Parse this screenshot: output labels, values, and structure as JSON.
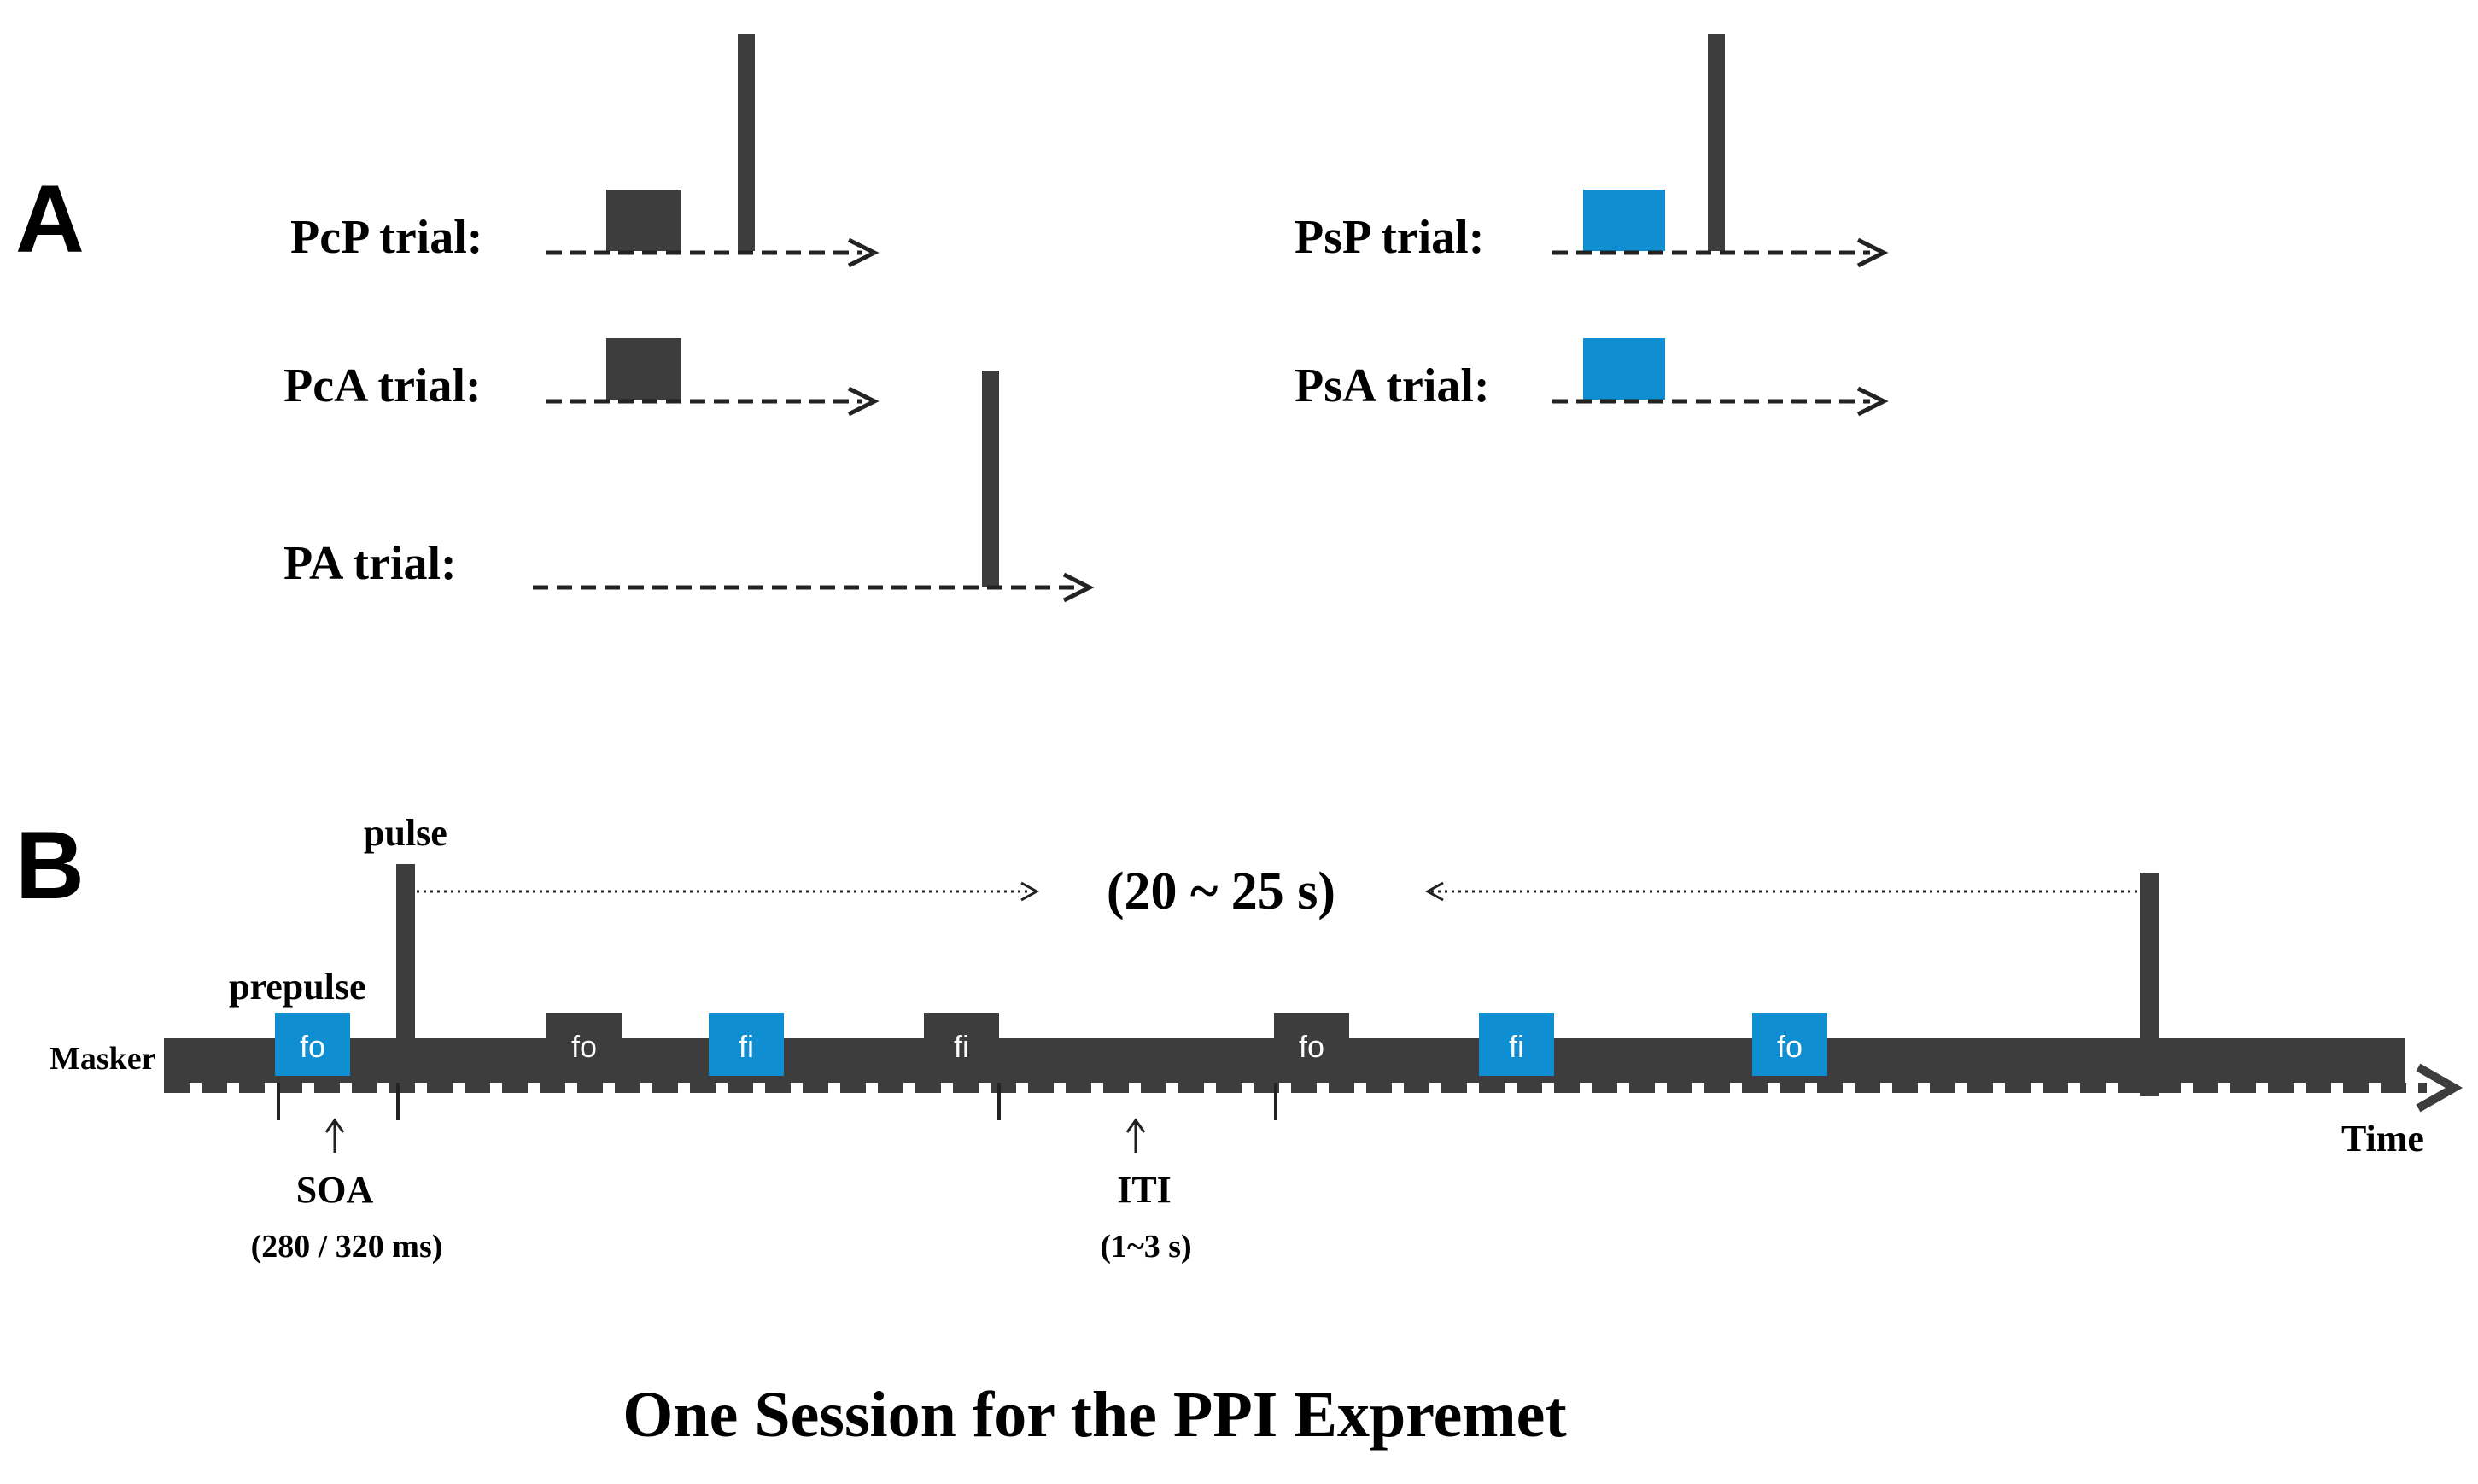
{
  "colors": {
    "dark": "#3d3d3d",
    "blue": "#0f8fd2",
    "text": "#000000"
  },
  "panel_a": {
    "letter": "A",
    "trials": [
      {
        "label": "PcP trial:",
        "prepulse": "dark",
        "pulse": "after-prepulse"
      },
      {
        "label": "PsP trial:",
        "prepulse": "blue",
        "pulse": "after-prepulse"
      },
      {
        "label": "PcA trial:",
        "prepulse": "dark",
        "pulse": "none"
      },
      {
        "label": "PsA trial:",
        "prepulse": "blue",
        "pulse": "none"
      },
      {
        "label": "PA trial:",
        "prepulse": "none",
        "pulse": "alone"
      }
    ]
  },
  "panel_b": {
    "letter": "B",
    "pulse_label": "pulse",
    "prepulse_label": "prepulse",
    "masker_label": "Masker",
    "time_label": "Time",
    "range_label": "(20 ~ 25 s)",
    "soa_label": "SOA",
    "soa_value": "(280 / 320 ms)",
    "iti_label": "ITI",
    "iti_value": "(1~3 s)",
    "blocks": [
      {
        "text": "fo",
        "color": "blue"
      },
      {
        "text": "fo",
        "color": "dark"
      },
      {
        "text": "fi",
        "color": "blue"
      },
      {
        "text": "fi",
        "color": "dark"
      },
      {
        "text": "fo",
        "color": "dark"
      },
      {
        "text": "fi",
        "color": "blue"
      },
      {
        "text": "fo",
        "color": "blue"
      }
    ]
  },
  "title": "One Session for the PPI Expremet"
}
